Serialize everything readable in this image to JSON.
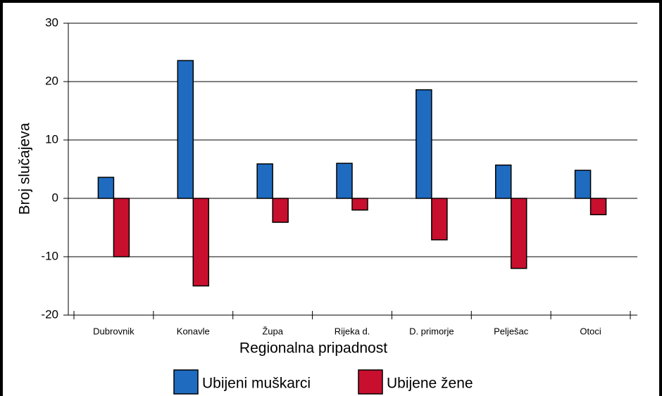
{
  "chart_data": {
    "type": "bar",
    "x_label": "Regionalna pripadnost",
    "y_label": "Broj slučajeva",
    "categories": [
      "Dubrovnik",
      "Konavle",
      "Župa",
      "Rijeka d.",
      "D. primorje",
      "Pelješac",
      "Otoci"
    ],
    "series": [
      {
        "name": "Ubijeni muškarci",
        "color": "#1f6bc0",
        "values": [
          3.6,
          23.6,
          5.9,
          6,
          18.6,
          5.7,
          4.8
        ]
      },
      {
        "name": "Ubijene žene",
        "color": "#c8102e",
        "values": [
          -10,
          -15,
          -4.1,
          -2,
          -7.1,
          -12,
          -2.8
        ]
      }
    ],
    "ylim": [
      -20,
      30
    ],
    "yticks": [
      -20,
      -10,
      0,
      10,
      20,
      30
    ],
    "grid": true
  }
}
